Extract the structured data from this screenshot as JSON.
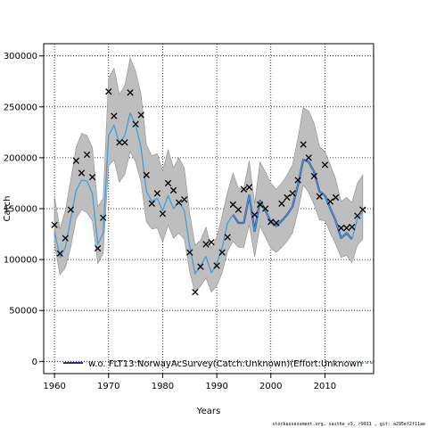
{
  "chart_data": {
    "type": "line",
    "xlabel": "Years",
    "ylabel": "Catch",
    "xlim": [
      1958,
      2019
    ],
    "ylim": [
      -12000,
      312000
    ],
    "x_ticks": [
      1960,
      1970,
      1980,
      1990,
      2000,
      2010
    ],
    "y_ticks": [
      0,
      50000,
      100000,
      150000,
      200000,
      250000,
      300000
    ],
    "grid": "dotted",
    "legend_position": "bottom-left",
    "colors": {
      "band": "#bebebe",
      "band_edge": "#8c8c8c",
      "model_line": "#3da0d8",
      "model_highlight": "#2b2d86",
      "observed_marker": "#000000"
    },
    "years": [
      1960,
      1961,
      1962,
      1963,
      1964,
      1965,
      1966,
      1967,
      1968,
      1969,
      1970,
      1971,
      1972,
      1973,
      1974,
      1975,
      1976,
      1977,
      1978,
      1979,
      1980,
      1981,
      1982,
      1983,
      1984,
      1985,
      1986,
      1987,
      1988,
      1989,
      1990,
      1991,
      1992,
      1993,
      1994,
      1995,
      1996,
      1997,
      1998,
      1999,
      2000,
      2001,
      2002,
      2003,
      2004,
      2005,
      2006,
      2007,
      2008,
      2009,
      2010,
      2011,
      2012,
      2013,
      2014,
      2015,
      2016,
      2017
    ],
    "series": [
      {
        "name": "w.o. FLT13:NorwayAcSurvey(Catch:Unknown)(Effort:Unknown",
        "role": "model estimate",
        "values": [
          128000,
          102000,
          112000,
          140000,
          168000,
          178000,
          177000,
          165000,
          115000,
          126000,
          222000,
          232000,
          214000,
          222000,
          244000,
          232000,
          210000,
          167000,
          157000,
          160000,
          148000,
          163000,
          150000,
          157000,
          148000,
          113000,
          86000,
          94000,
          103000,
          87000,
          96000,
          112000,
          136000,
          144000,
          136000,
          136000,
          163000,
          128000,
          158000,
          148000,
          137000,
          133000,
          138000,
          144000,
          152000,
          173000,
          198000,
          196000,
          186000,
          167000,
          163000,
          150000,
          138000,
          121000,
          126000,
          120000,
          140000,
          147000
        ],
        "lower": [
          115000,
          85000,
          92000,
          112000,
          140000,
          149000,
          146000,
          138000,
          96000,
          106000,
          192000,
          198000,
          176000,
          184000,
          206000,
          196000,
          176000,
          137000,
          130000,
          131000,
          117000,
          134000,
          121000,
          126000,
          120000,
          88000,
          67000,
          74000,
          82000,
          68000,
          74000,
          87000,
          108000,
          118000,
          112000,
          112000,
          134000,
          103000,
          133000,
          122000,
          111000,
          107000,
          112000,
          118000,
          126000,
          147000,
          173000,
          166000,
          154000,
          139000,
          138000,
          126000,
          115000,
          102000,
          104000,
          97000,
          114000,
          120000
        ],
        "upper": [
          162000,
          130000,
          148000,
          178000,
          210000,
          224000,
          222000,
          210000,
          152000,
          160000,
          278000,
          288000,
          262000,
          271000,
          298000,
          285000,
          262000,
          213000,
          202000,
          204000,
          187000,
          208000,
          190000,
          200000,
          190000,
          145000,
          114000,
          119000,
          132000,
          111000,
          122000,
          143000,
          166000,
          185000,
          170000,
          170000,
          197000,
          155000,
          196000,
          186000,
          175000,
          169000,
          175000,
          183000,
          193000,
          219000,
          249000,
          246000,
          234000,
          211000,
          206000,
          193000,
          179000,
          157000,
          161000,
          156000,
          175000,
          183000
        ],
        "highlight_x": [
          1993,
          1994,
          1995,
          1996,
          1997,
          1998,
          1999,
          2000,
          2001,
          2002,
          2003,
          2004,
          2005,
          2006,
          2007,
          2008,
          2009,
          2010,
          2011,
          2012,
          2013,
          2014,
          2015
        ]
      }
    ],
    "observed": [
      [
        1960,
        134000
      ],
      [
        1961,
        106000
      ],
      [
        1962,
        121000
      ],
      [
        1963,
        149000
      ],
      [
        1964,
        197000
      ],
      [
        1965,
        185000
      ],
      [
        1966,
        203000
      ],
      [
        1967,
        181000
      ],
      [
        1968,
        111000
      ],
      [
        1969,
        141000
      ],
      [
        1970,
        265000
      ],
      [
        1971,
        241000
      ],
      [
        1972,
        215000
      ],
      [
        1973,
        215000
      ],
      [
        1974,
        264000
      ],
      [
        1975,
        233000
      ],
      [
        1976,
        242000
      ],
      [
        1977,
        183000
      ],
      [
        1978,
        155000
      ],
      [
        1979,
        165000
      ],
      [
        1980,
        145000
      ],
      [
        1981,
        175000
      ],
      [
        1982,
        168000
      ],
      [
        1983,
        156000
      ],
      [
        1984,
        159000
      ],
      [
        1985,
        107000
      ],
      [
        1986,
        68000
      ],
      [
        1987,
        93000
      ],
      [
        1988,
        115000
      ],
      [
        1989,
        117000
      ],
      [
        1990,
        94000
      ],
      [
        1991,
        107000
      ],
      [
        1992,
        122000
      ],
      [
        1993,
        154000
      ],
      [
        1994,
        149000
      ],
      [
        1995,
        169000
      ],
      [
        1996,
        171000
      ],
      [
        1997,
        144000
      ],
      [
        1998,
        154000
      ],
      [
        1999,
        150000
      ],
      [
        2000,
        137000
      ],
      [
        2001,
        136000
      ],
      [
        2002,
        155000
      ],
      [
        2003,
        161000
      ],
      [
        2004,
        165000
      ],
      [
        2005,
        178000
      ],
      [
        2006,
        213000
      ],
      [
        2007,
        200000
      ],
      [
        2008,
        182000
      ],
      [
        2009,
        162000
      ],
      [
        2010,
        193000
      ],
      [
        2011,
        157000
      ],
      [
        2012,
        161000
      ],
      [
        2013,
        131000
      ],
      [
        2014,
        131000
      ],
      [
        2015,
        132000
      ],
      [
        2016,
        143000
      ],
      [
        2017,
        149000
      ]
    ]
  },
  "footer_text": "stockassessment.org, saithe_v3, r9911 , git: a295ef2f11ae"
}
